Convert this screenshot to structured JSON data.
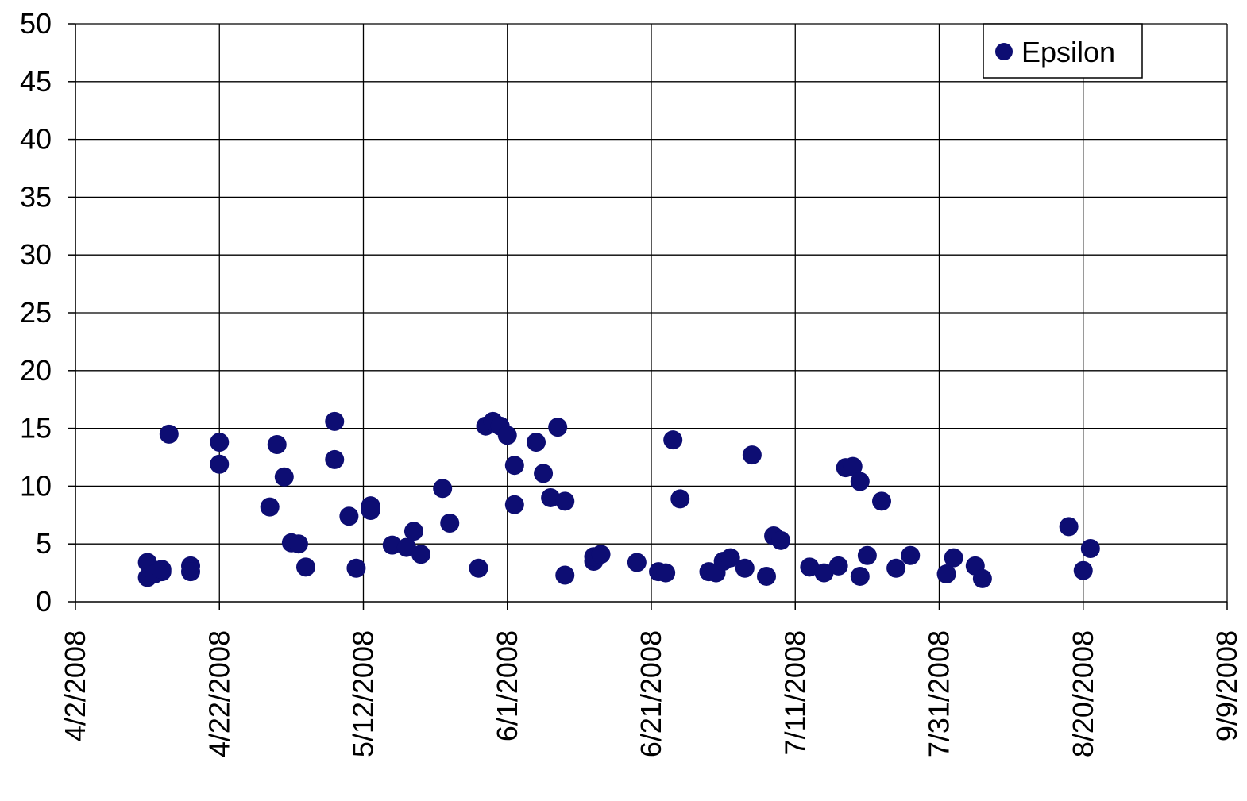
{
  "chart_data": {
    "type": "scatter",
    "title": "",
    "xlabel": "",
    "ylabel": "",
    "x_axis": {
      "type": "date",
      "min": "2008-04-02",
      "max": "2008-09-09",
      "tick_labels": [
        "4/2/2008",
        "4/22/2008",
        "5/12/2008",
        "6/1/2008",
        "6/21/2008",
        "7/11/2008",
        "7/31/2008",
        "8/20/2008",
        "9/9/2008"
      ],
      "tick_dates": [
        "2008-04-02",
        "2008-04-22",
        "2008-05-12",
        "2008-06-01",
        "2008-06-21",
        "2008-07-11",
        "2008-07-31",
        "2008-08-20",
        "2008-09-09"
      ]
    },
    "y_axis": {
      "min": 0,
      "max": 50,
      "step": 5,
      "tick_labels": [
        "0",
        "5",
        "10",
        "15",
        "20",
        "25",
        "30",
        "35",
        "40",
        "45",
        "50"
      ]
    },
    "grid": true,
    "legend_position": "top-right",
    "series": [
      {
        "name": "Epsilon",
        "color": "#0d0d73",
        "points": [
          {
            "x": "2008-04-12",
            "y": 3.4
          },
          {
            "x": "2008-04-12",
            "y": 2.1
          },
          {
            "x": "2008-04-13",
            "y": 2.4
          },
          {
            "x": "2008-04-14",
            "y": 2.6
          },
          {
            "x": "2008-04-14",
            "y": 2.8
          },
          {
            "x": "2008-04-15",
            "y": 14.5
          },
          {
            "x": "2008-04-18",
            "y": 3.1
          },
          {
            "x": "2008-04-18",
            "y": 2.6
          },
          {
            "x": "2008-04-22",
            "y": 13.8
          },
          {
            "x": "2008-04-22",
            "y": 11.9
          },
          {
            "x": "2008-04-29",
            "y": 8.2
          },
          {
            "x": "2008-04-30",
            "y": 13.6
          },
          {
            "x": "2008-05-01",
            "y": 10.8
          },
          {
            "x": "2008-05-02",
            "y": 5.1
          },
          {
            "x": "2008-05-03",
            "y": 5.0
          },
          {
            "x": "2008-05-04",
            "y": 3.0
          },
          {
            "x": "2008-05-08",
            "y": 15.6
          },
          {
            "x": "2008-05-08",
            "y": 12.3
          },
          {
            "x": "2008-05-10",
            "y": 7.4
          },
          {
            "x": "2008-05-11",
            "y": 2.9
          },
          {
            "x": "2008-05-13",
            "y": 8.3
          },
          {
            "x": "2008-05-13",
            "y": 7.9
          },
          {
            "x": "2008-05-16",
            "y": 4.9
          },
          {
            "x": "2008-05-18",
            "y": 4.7
          },
          {
            "x": "2008-05-19",
            "y": 6.1
          },
          {
            "x": "2008-05-20",
            "y": 4.1
          },
          {
            "x": "2008-05-23",
            "y": 9.8
          },
          {
            "x": "2008-05-24",
            "y": 6.8
          },
          {
            "x": "2008-05-28",
            "y": 2.9
          },
          {
            "x": "2008-05-29",
            "y": 15.2
          },
          {
            "x": "2008-05-30",
            "y": 15.6
          },
          {
            "x": "2008-05-31",
            "y": 15.2
          },
          {
            "x": "2008-06-01",
            "y": 14.4
          },
          {
            "x": "2008-06-02",
            "y": 11.8
          },
          {
            "x": "2008-06-02",
            "y": 8.4
          },
          {
            "x": "2008-06-05",
            "y": 13.8
          },
          {
            "x": "2008-06-06",
            "y": 11.1
          },
          {
            "x": "2008-06-07",
            "y": 9.0
          },
          {
            "x": "2008-06-08",
            "y": 15.1
          },
          {
            "x": "2008-06-09",
            "y": 8.7
          },
          {
            "x": "2008-06-09",
            "y": 2.3
          },
          {
            "x": "2008-06-13",
            "y": 3.5
          },
          {
            "x": "2008-06-13",
            "y": 3.9
          },
          {
            "x": "2008-06-14",
            "y": 4.1
          },
          {
            "x": "2008-06-19",
            "y": 3.4
          },
          {
            "x": "2008-06-22",
            "y": 2.6
          },
          {
            "x": "2008-06-23",
            "y": 2.5
          },
          {
            "x": "2008-06-24",
            "y": 14.0
          },
          {
            "x": "2008-06-25",
            "y": 8.9
          },
          {
            "x": "2008-06-29",
            "y": 2.6
          },
          {
            "x": "2008-06-30",
            "y": 2.5
          },
          {
            "x": "2008-07-01",
            "y": 3.5
          },
          {
            "x": "2008-07-02",
            "y": 3.8
          },
          {
            "x": "2008-07-04",
            "y": 2.9
          },
          {
            "x": "2008-07-05",
            "y": 12.7
          },
          {
            "x": "2008-07-07",
            "y": 2.2
          },
          {
            "x": "2008-07-08",
            "y": 5.7
          },
          {
            "x": "2008-07-09",
            "y": 5.3
          },
          {
            "x": "2008-07-13",
            "y": 3.0
          },
          {
            "x": "2008-07-15",
            "y": 2.5
          },
          {
            "x": "2008-07-17",
            "y": 3.1
          },
          {
            "x": "2008-07-18",
            "y": 11.6
          },
          {
            "x": "2008-07-19",
            "y": 11.7
          },
          {
            "x": "2008-07-20",
            "y": 10.4
          },
          {
            "x": "2008-07-20",
            "y": 2.2
          },
          {
            "x": "2008-07-21",
            "y": 4.0
          },
          {
            "x": "2008-07-23",
            "y": 8.7
          },
          {
            "x": "2008-07-25",
            "y": 2.9
          },
          {
            "x": "2008-07-27",
            "y": 4.0
          },
          {
            "x": "2008-08-01",
            "y": 2.4
          },
          {
            "x": "2008-08-02",
            "y": 3.8
          },
          {
            "x": "2008-08-05",
            "y": 3.1
          },
          {
            "x": "2008-08-06",
            "y": 2.0
          },
          {
            "x": "2008-08-18",
            "y": 6.5
          },
          {
            "x": "2008-08-20",
            "y": 2.7
          },
          {
            "x": "2008-08-21",
            "y": 4.6
          }
        ]
      }
    ]
  }
}
